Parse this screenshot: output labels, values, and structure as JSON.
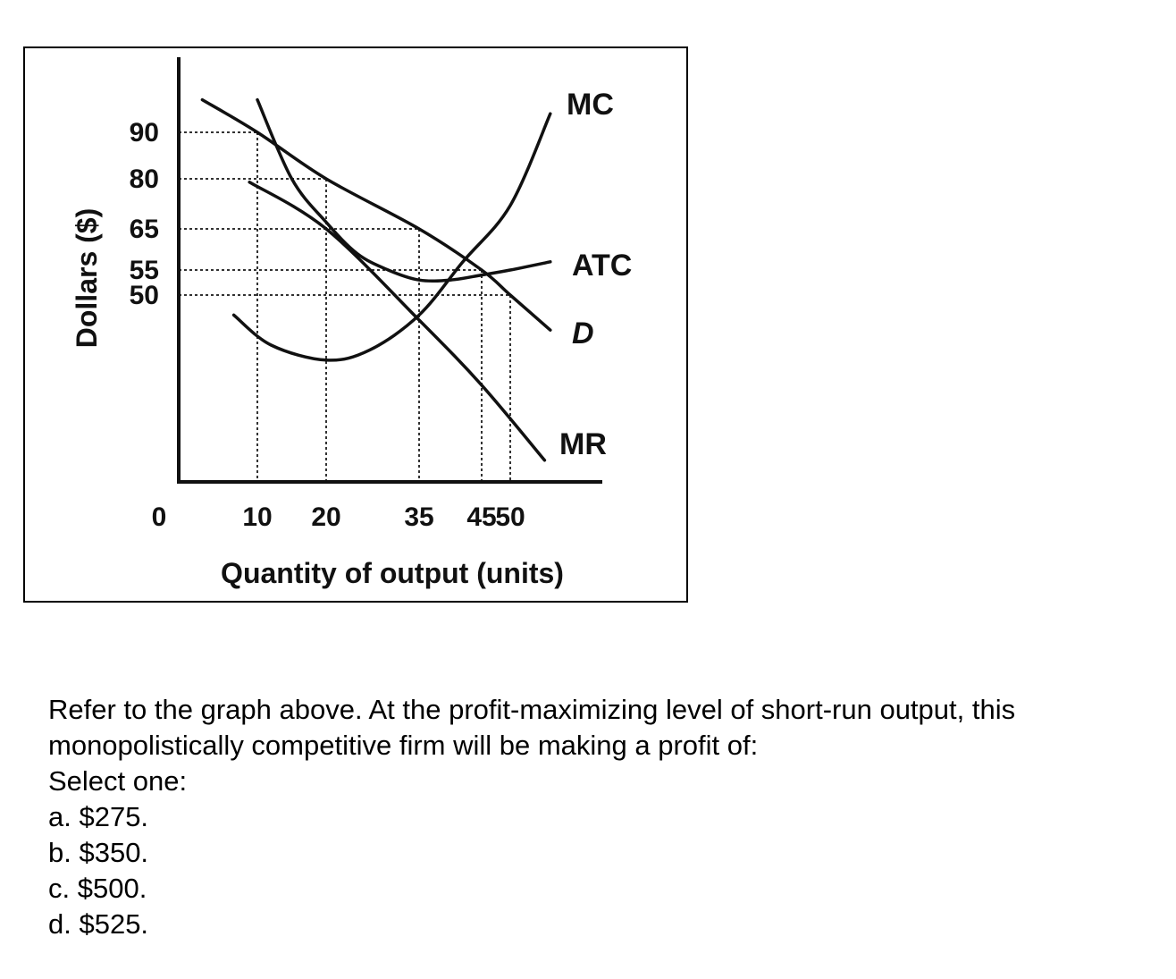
{
  "chart_data": {
    "type": "line",
    "xlabel": "Quantity of output (units)",
    "ylabel": "Dollars ($)",
    "x_ticks": [
      "0",
      "10",
      "20",
      "35",
      "45",
      "50"
    ],
    "y_ticks": [
      "90",
      "80",
      "65",
      "55",
      "50"
    ],
    "series": [
      {
        "name": "MC",
        "points": [
          [
            7,
            46
          ],
          [
            12,
            40
          ],
          [
            20,
            37
          ],
          [
            27,
            39
          ],
          [
            35,
            46
          ],
          [
            42,
            57
          ],
          [
            50,
            72
          ],
          [
            57,
            94
          ]
        ]
      },
      {
        "name": "ATC",
        "points": [
          [
            10,
            97
          ],
          [
            15,
            80
          ],
          [
            20,
            67
          ],
          [
            25,
            59
          ],
          [
            30,
            55
          ],
          [
            35,
            53
          ],
          [
            40,
            53
          ],
          [
            45,
            54
          ],
          [
            50,
            55
          ],
          [
            57,
            57
          ]
        ]
      },
      {
        "name": "D",
        "points": [
          [
            3,
            97
          ],
          [
            10,
            90
          ],
          [
            20,
            80
          ],
          [
            35,
            65
          ],
          [
            45,
            55
          ],
          [
            50,
            50
          ],
          [
            57,
            43
          ]
        ]
      },
      {
        "name": "MR",
        "points": [
          [
            9,
            79
          ],
          [
            20,
            65
          ],
          [
            35,
            45
          ],
          [
            45,
            32
          ],
          [
            56,
            17
          ]
        ]
      }
    ],
    "reference_lines": [
      {
        "axis": "y",
        "value": 90
      },
      {
        "axis": "y",
        "value": 80
      },
      {
        "axis": "y",
        "value": 65
      },
      {
        "axis": "y",
        "value": 55
      },
      {
        "axis": "y",
        "value": 50
      },
      {
        "axis": "x",
        "value": 10
      },
      {
        "axis": "x",
        "value": 20
      },
      {
        "axis": "x",
        "value": 35
      },
      {
        "axis": "x",
        "value": 45
      },
      {
        "axis": "x",
        "value": 50
      }
    ]
  },
  "question": {
    "text": "Refer to the graph above. At the profit-maximizing level of short-run output, this monopolistically competitive firm will be making a profit of:",
    "select_prompt": "Select one:",
    "options": [
      "a. $275.",
      "b. $350.",
      "c. $500.",
      "d. $525."
    ]
  }
}
